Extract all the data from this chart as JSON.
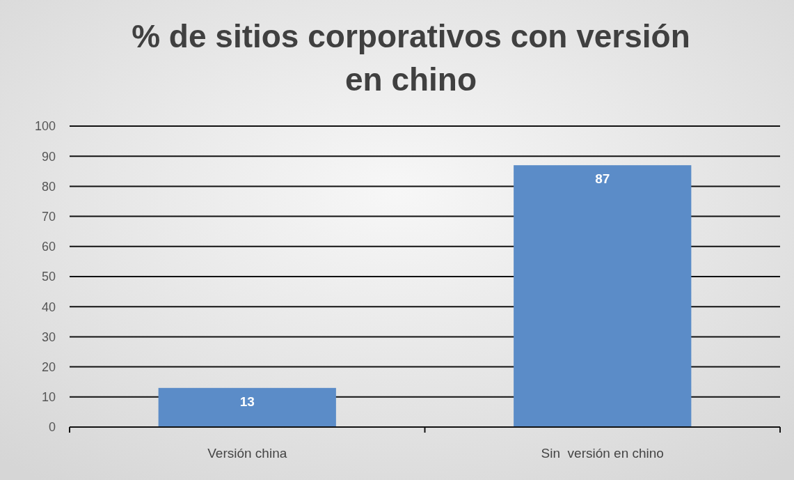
{
  "chart_data": {
    "type": "bar",
    "title": "% de sitios corporativos con versión en chino",
    "categories": [
      "Versión china",
      "Sin  versión en chino"
    ],
    "values": [
      13,
      87
    ],
    "color": "#5b8cc8",
    "ylim": [
      0,
      100
    ],
    "yticks": [
      0,
      10,
      20,
      30,
      40,
      50,
      60,
      70,
      80,
      90,
      100
    ],
    "grid": "y",
    "data_labels": true
  }
}
